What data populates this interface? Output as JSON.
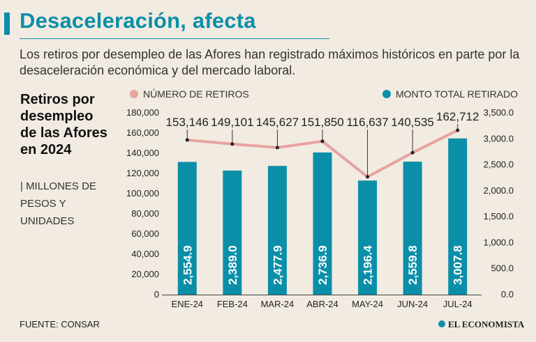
{
  "header": {
    "title": "Desaceleración, afecta",
    "subtitle": "Los retiros por desempleo de las Afores han registrado máximos históricos en parte por la desaceleración económica y del mercado laboral."
  },
  "side": {
    "title": "Retiros por desempleo de las Afores en 2024",
    "units": "| MILLONES DE PESOS Y UNIDADES"
  },
  "footer": {
    "source": "FUENTE: CONSAR",
    "brand": "EL ECONOMISTA"
  },
  "colors": {
    "accent": "#0b8fa8",
    "line": "#e8a2a0",
    "background": "#f1ebe1"
  },
  "chart_data": {
    "type": "bar",
    "categories": [
      "ENE-24",
      "FEB-24",
      "MAR-24",
      "ABR-24",
      "MAY-24",
      "JUN-24",
      "JUL-24"
    ],
    "left_axis": {
      "ylim": [
        0,
        180000
      ],
      "ticks": [
        0,
        20000,
        40000,
        60000,
        80000,
        100000,
        120000,
        140000,
        160000,
        180000
      ],
      "tick_labels": [
        "0",
        "20,000",
        "40,000",
        "60,000",
        "80,000",
        "100,000",
        "120,000",
        "140,000",
        "160,000",
        "180,000"
      ]
    },
    "right_axis": {
      "ylim": [
        0,
        3500
      ],
      "ticks": [
        0,
        500,
        1000,
        1500,
        2000,
        2500,
        3000,
        3500
      ],
      "tick_labels": [
        "0.0",
        "500.0",
        "1,000.0",
        "1,500.0",
        "2,000.0",
        "2,500.0",
        "3,000.0",
        "3,500.0"
      ]
    },
    "series": [
      {
        "name": "NÚMERO DE RETIROS",
        "kind": "line",
        "axis": "left",
        "color": "#e8a2a0",
        "values": [
          153146,
          149101,
          145627,
          151850,
          116637,
          140535,
          162712
        ],
        "labels": [
          "153,146",
          "149,101",
          "145,627",
          "151,850",
          "116,637",
          "140,535",
          "162,712"
        ]
      },
      {
        "name": "MONTO TOTAL RETIRADO",
        "kind": "bar",
        "axis": "right",
        "color": "#0b8fa8",
        "values": [
          2554.9,
          2389.0,
          2477.9,
          2736.9,
          2196.4,
          2559.8,
          3007.8
        ],
        "labels": [
          "2,554.9",
          "2,389.0",
          "2,477.9",
          "2,736.9",
          "2,196.4",
          "2,559.8",
          "3,007.8"
        ]
      }
    ]
  }
}
